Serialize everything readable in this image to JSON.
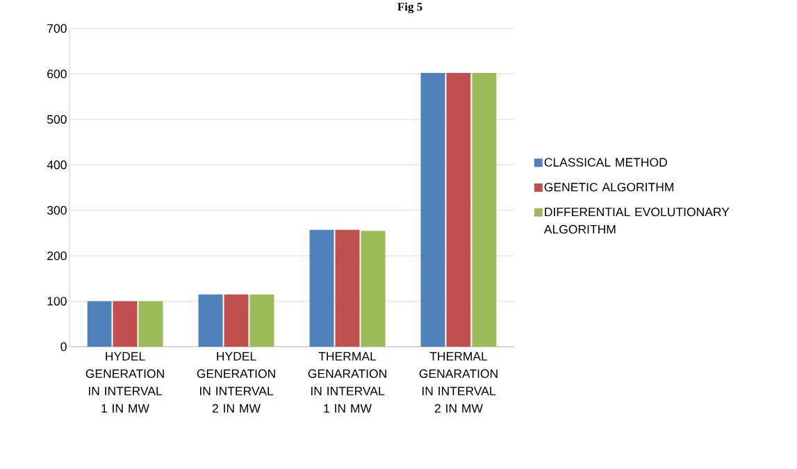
{
  "chart_data": {
    "type": "bar",
    "title": "Fig 5",
    "categories": [
      "HYDEL GENERATION IN INTERVAL 1 IN MW",
      "HYDEL GENERATION IN INTERVAL 2 IN MW",
      "THERMAL GENARATION IN INTERVAL 1 IN MW",
      "THERMAL GENARATION IN INTERVAL 2 IN MW"
    ],
    "series": [
      {
        "name": "CLASSICAL METHOD",
        "color": "#4f81bd",
        "values": [
          100,
          115,
          257,
          602
        ]
      },
      {
        "name": "GENETIC ALGORITHM",
        "color": "#c0504d",
        "values": [
          100,
          115,
          257,
          602
        ]
      },
      {
        "name": "DIFFERENTIAL EVOLUTIONARY ALGORITHM",
        "color": "#9bbb59",
        "values": [
          100,
          115,
          255,
          602
        ]
      }
    ],
    "ylim": [
      0,
      700
    ],
    "yticks": [
      0,
      100,
      200,
      300,
      400,
      500,
      600,
      700
    ],
    "grid": "y",
    "legend": "right"
  }
}
